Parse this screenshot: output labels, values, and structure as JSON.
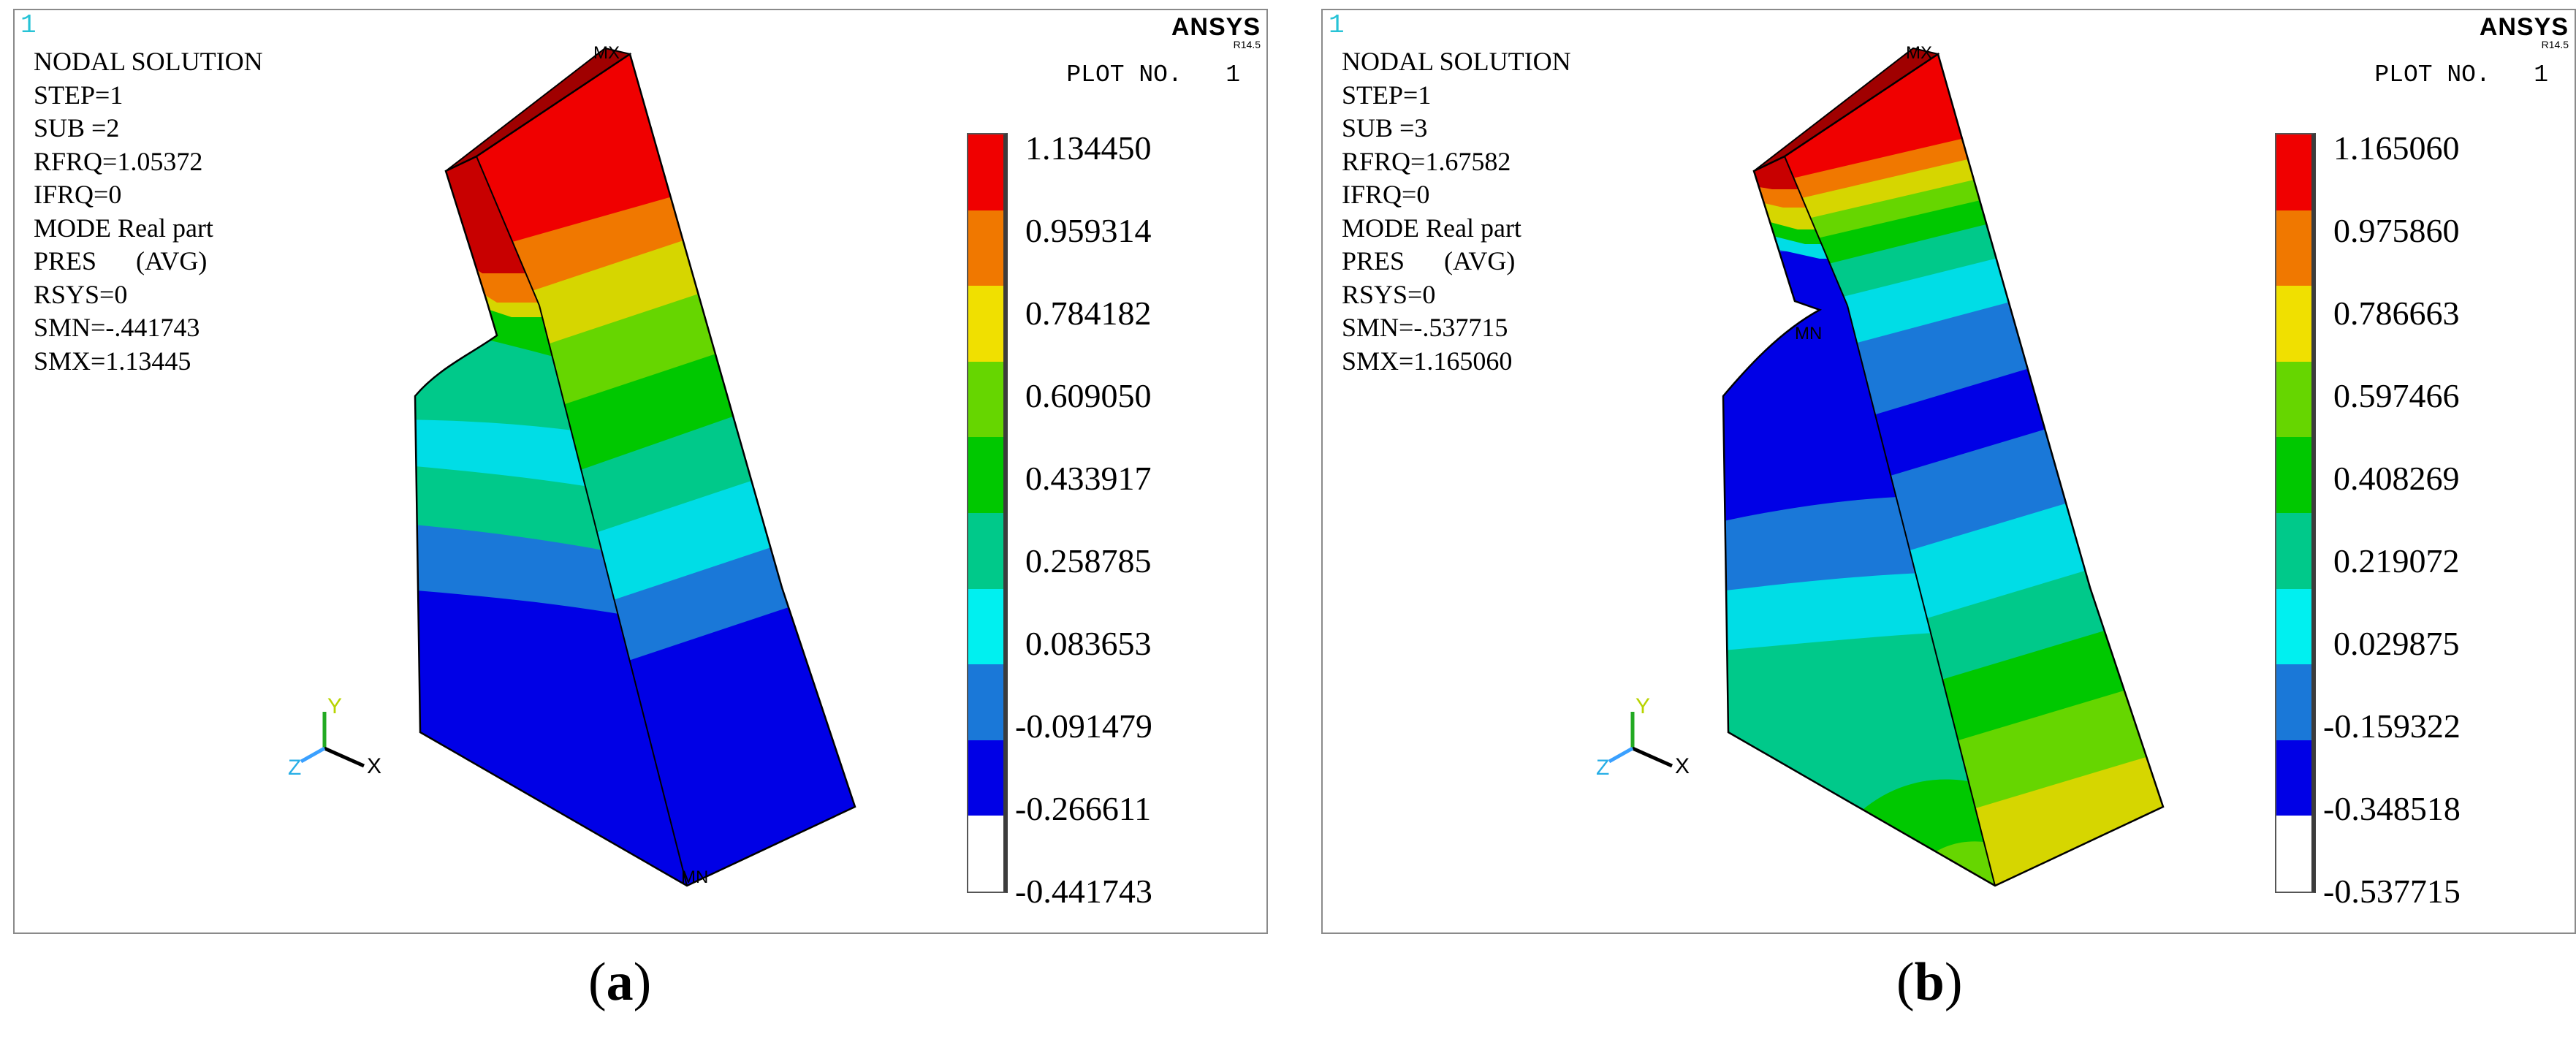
{
  "figures": [
    {
      "id": "a",
      "window_number": "1",
      "logo": "ANSYS",
      "version": "R14.5",
      "plot_no": "PLOT NO.   1",
      "info_lines": [
        "NODAL SOLUTION",
        "STEP=1",
        "SUB =2",
        "RFRQ=1.05372",
        "IFRQ=0",
        "MODE Real part",
        "PRES      (AVG)",
        "RSYS=0",
        "SMN=-.441743",
        "SMX=1.13445"
      ],
      "legend_values": [
        "1.134450",
        "0.959314",
        "0.784182",
        "0.609050",
        "0.433917",
        "0.258785",
        "0.083653",
        "-0.091479",
        "-0.266611",
        "-0.441743"
      ],
      "mx_label": "MX",
      "mn_label": "MN",
      "axis": {
        "x": "X",
        "y": "Y",
        "z": "Z"
      },
      "caption_open": "(",
      "caption_letter": "a",
      "caption_close": ")"
    },
    {
      "id": "b",
      "window_number": "1",
      "logo": "ANSYS",
      "version": "R14.5",
      "plot_no": "PLOT NO.   1",
      "info_lines": [
        "NODAL SOLUTION",
        "STEP=1",
        "SUB =3",
        "RFRQ=1.67582",
        "IFRQ=0",
        "MODE Real part",
        "PRES      (AVG)",
        "RSYS=0",
        "SMN=-.537715",
        "SMX=1.165060"
      ],
      "legend_values": [
        "1.165060",
        "0.975860",
        "0.786663",
        "0.597466",
        "0.408269",
        "0.219072",
        "0.029875",
        "-0.159322",
        "-0.348518",
        "-0.537715"
      ],
      "mx_label": "MX",
      "mn_label": "MN",
      "axis": {
        "x": "X",
        "y": "Y",
        "z": "Z"
      },
      "caption_open": "(",
      "caption_letter": "b",
      "caption_close": ")"
    }
  ],
  "contour_colors": [
    "#0000e6",
    "#1a78d8",
    "#00dde6",
    "#00c98a",
    "#00c800",
    "#66d600",
    "#d6d600",
    "#f0a000",
    "#f07800",
    "#f00000"
  ]
}
